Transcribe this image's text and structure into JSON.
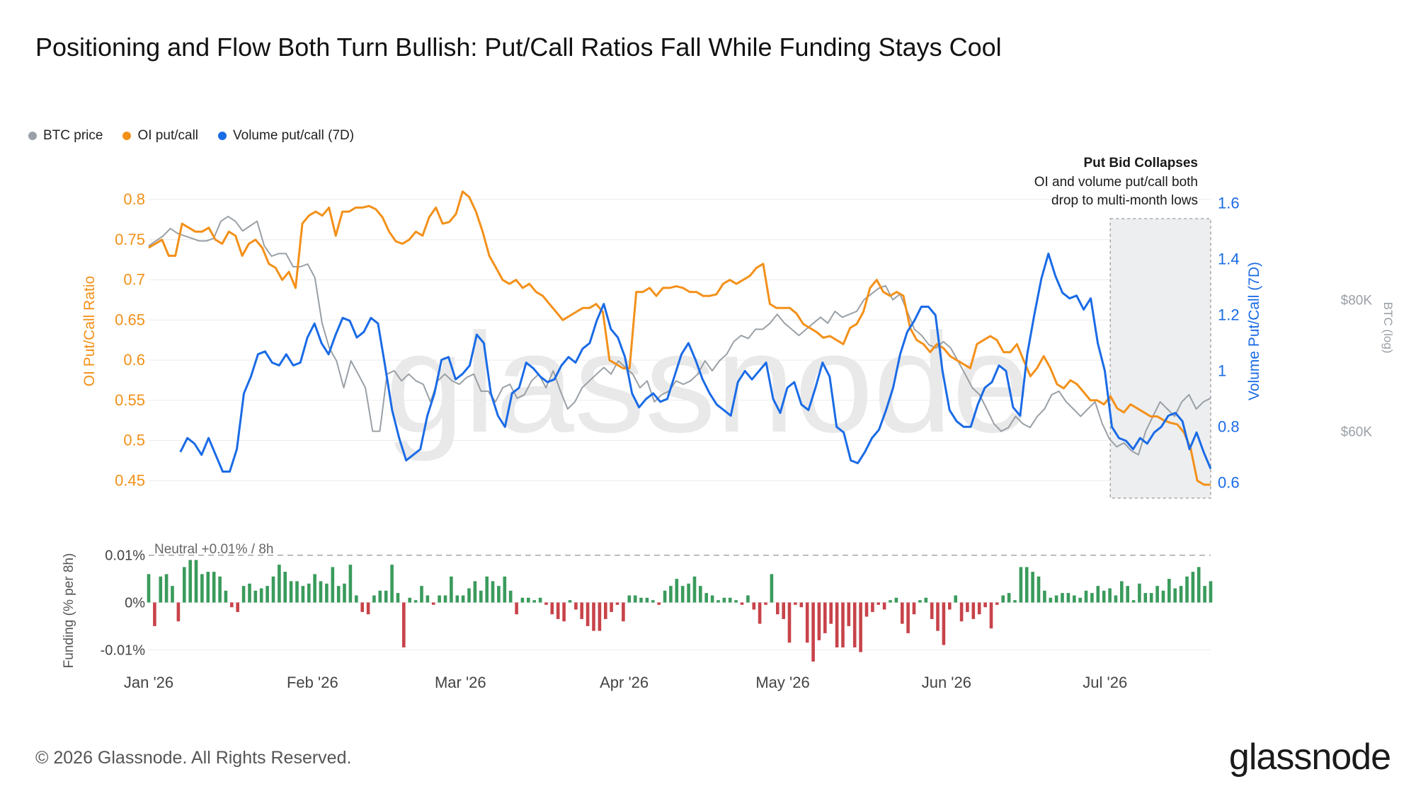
{
  "title": "Positioning and Flow Both Turn Bullish: Put/Call Ratios Fall While Funding Stays Cool",
  "legend": [
    {
      "label": "BTC price",
      "color": "#9aa0a6"
    },
    {
      "label": "OI put/call",
      "color": "#f39019"
    },
    {
      "label": "Volume put/call (7D)",
      "color": "#1a6be6"
    }
  ],
  "colors": {
    "btc": "#9aa0a6",
    "oi": "#f39019",
    "vol": "#1a6be6",
    "funding_pos": "#3a9b5c",
    "funding_neg": "#c8434a",
    "band": "#eceef0"
  },
  "watermark": "glassnode",
  "annotation": {
    "title": "Put Bid Collapses",
    "lines": [
      "OI and volume put/call both",
      "drop to multi-month lows"
    ]
  },
  "footer": {
    "copyright": "© 2026 Glassnode. All Rights Reserved.",
    "brand": "glassnode"
  },
  "chart_data": [
    {
      "type": "line",
      "x_axis": {
        "start": "2026-01-01",
        "end": "2026-07-21",
        "ticks": [
          "Jan '26",
          "Feb '26",
          "Mar '26",
          "Apr '26",
          "May '26",
          "Jun '26",
          "Jul '26"
        ]
      },
      "highlight_range": {
        "start": "2026-07-02",
        "end": "2026-07-21"
      },
      "axes": {
        "left": {
          "label": "OI Put/Call Ratio",
          "ylim": [
            0.43,
            0.83
          ],
          "ticks": [
            "0.45",
            "0.5",
            "0.55",
            "0.6",
            "0.65",
            "0.7",
            "0.75",
            "0.8"
          ],
          "color": "#f39019"
        },
        "right": {
          "label": "Volume Put/Call (7D)",
          "ylim": [
            0.55,
            1.7
          ],
          "ticks": [
            "0.6",
            "0.8",
            "1",
            "1.2",
            "1.4",
            "1.6"
          ],
          "color": "#1a6be6"
        },
        "far_right": {
          "label": "BTC (log)",
          "scale": "log",
          "ticks": [
            "$60K",
            "$80K"
          ],
          "color": "#9aa0a6"
        }
      },
      "series": [
        {
          "name": "OI put/call",
          "axis": "left",
          "start": "2026-01-01",
          "values": [
            0.74,
            0.745,
            0.75,
            0.73,
            0.73,
            0.77,
            0.765,
            0.76,
            0.76,
            0.765,
            0.75,
            0.745,
            0.76,
            0.755,
            0.73,
            0.745,
            0.75,
            0.74,
            0.72,
            0.715,
            0.7,
            0.71,
            0.69,
            0.77,
            0.78,
            0.785,
            0.78,
            0.79,
            0.755,
            0.785,
            0.785,
            0.79,
            0.79,
            0.792,
            0.788,
            0.778,
            0.76,
            0.748,
            0.745,
            0.75,
            0.76,
            0.755,
            0.778,
            0.79,
            0.77,
            0.772,
            0.782,
            0.81,
            0.803,
            0.785,
            0.76,
            0.73,
            0.715,
            0.7,
            0.695,
            0.7,
            0.69,
            0.695,
            0.685,
            0.68,
            0.67,
            0.66,
            0.65,
            0.655,
            0.66,
            0.665,
            0.665,
            0.67,
            0.66,
            0.6,
            0.595,
            0.59,
            0.59,
            0.685,
            0.685,
            0.69,
            0.68,
            0.69,
            0.69,
            0.692,
            0.69,
            0.685,
            0.685,
            0.68,
            0.68,
            0.682,
            0.695,
            0.7,
            0.695,
            0.7,
            0.705,
            0.715,
            0.72,
            0.67,
            0.665,
            0.665,
            0.665,
            0.658,
            0.645,
            0.64,
            0.635,
            0.628,
            0.63,
            0.625,
            0.62,
            0.64,
            0.645,
            0.66,
            0.69,
            0.7,
            0.685,
            0.68,
            0.685,
            0.68,
            0.64,
            0.625,
            0.62,
            0.61,
            0.62,
            0.615,
            0.605,
            0.6,
            0.595,
            0.59,
            0.62,
            0.625,
            0.63,
            0.625,
            0.61,
            0.61,
            0.62,
            0.6,
            0.58,
            0.59,
            0.605,
            0.59,
            0.57,
            0.565,
            0.575,
            0.57,
            0.56,
            0.55,
            0.55,
            0.545,
            0.555,
            0.54,
            0.535,
            0.545,
            0.54,
            0.535,
            0.53,
            0.53,
            0.525,
            0.522,
            0.52,
            0.51,
            0.49,
            0.45,
            0.445,
            0.445
          ]
        },
        {
          "name": "Volume put/call (7D)",
          "axis": "right",
          "start": "2026-01-07",
          "values": [
            0.71,
            0.76,
            0.74,
            0.7,
            0.76,
            0.7,
            0.64,
            0.64,
            0.72,
            0.92,
            0.98,
            1.06,
            1.07,
            1.03,
            1.02,
            1.06,
            1.02,
            1.03,
            1.12,
            1.17,
            1.1,
            1.06,
            1.13,
            1.19,
            1.18,
            1.12,
            1.14,
            1.19,
            1.17,
            1.02,
            0.86,
            0.76,
            0.68,
            0.7,
            0.72,
            0.84,
            0.92,
            1.04,
            1.05,
            0.97,
            0.99,
            1.02,
            1.13,
            1.1,
            0.92,
            0.84,
            0.8,
            0.92,
            0.94,
            1.03,
            1.01,
            0.98,
            0.96,
            0.97,
            1.02,
            1.05,
            1.03,
            1.08,
            1.1,
            1.18,
            1.24,
            1.15,
            1.12,
            1.05,
            0.92,
            0.87,
            0.9,
            0.92,
            0.89,
            0.9,
            0.98,
            1.06,
            1.1,
            1.04,
            0.97,
            0.92,
            0.88,
            0.86,
            0.84,
            0.96,
            1.0,
            0.97,
            1.0,
            1.03,
            0.9,
            0.85,
            0.94,
            0.96,
            0.88,
            0.86,
            0.94,
            1.03,
            0.98,
            0.8,
            0.78,
            0.68,
            0.67,
            0.71,
            0.76,
            0.79,
            0.86,
            0.94,
            1.06,
            1.14,
            1.18,
            1.23,
            1.23,
            1.2,
            1.0,
            0.86,
            0.82,
            0.8,
            0.8,
            0.88,
            0.94,
            0.96,
            1.02,
            1.0,
            0.87,
            0.84,
            1.06,
            1.2,
            1.33,
            1.42,
            1.34,
            1.28,
            1.26,
            1.27,
            1.22,
            1.26,
            1.1,
            1.0,
            0.8,
            0.76,
            0.75,
            0.72,
            0.76,
            0.74,
            0.78,
            0.8,
            0.84,
            0.85,
            0.82,
            0.72,
            0.78,
            0.71,
            0.65
          ]
        },
        {
          "name": "BTC price",
          "axis": "far_right",
          "start": "2026-01-01",
          "values": [
            90000,
            91000,
            92000,
            93500,
            92500,
            92000,
            91500,
            91000,
            91000,
            91500,
            95000,
            96000,
            95000,
            93000,
            94000,
            95000,
            90000,
            88000,
            88500,
            88500,
            86000,
            86000,
            86500,
            84000,
            76000,
            72000,
            70000,
            66000,
            70000,
            68000,
            66000,
            60000,
            60000,
            68000,
            68500,
            67000,
            68000,
            67000,
            66500,
            64000,
            67000,
            68000,
            67000,
            66500,
            67500,
            68000,
            65500,
            65500,
            64000,
            66000,
            66500,
            64500,
            65000,
            67000,
            68000,
            66000,
            68500,
            65500,
            63000,
            64000,
            66000,
            67000,
            68000,
            69000,
            68000,
            70000,
            69000,
            68000,
            66000,
            67000,
            64000,
            65000,
            65500,
            67000,
            66500,
            67000,
            68000,
            70000,
            68500,
            70000,
            71000,
            73000,
            74000,
            73500,
            75000,
            75000,
            76000,
            77500,
            76000,
            75000,
            74000,
            75000,
            76000,
            77000,
            76000,
            78000,
            77000,
            77500,
            78000,
            80000,
            81000,
            82000,
            82500,
            80000,
            81000,
            78000,
            75000,
            74000,
            72500,
            72000,
            73000,
            72000,
            70000,
            68000,
            66000,
            65000,
            63000,
            61000,
            60000,
            60500,
            62000,
            61000,
            60500,
            62000,
            63000,
            65000,
            65500,
            64000,
            63000,
            62000,
            63000,
            64000,
            61000,
            59000,
            58000,
            58500,
            57500,
            57000,
            60000,
            62000,
            64000,
            63000,
            62000,
            64000,
            65000,
            63000,
            64000,
            64500
          ]
        }
      ]
    },
    {
      "type": "bar",
      "ylabel": "Funding (% per 8h)",
      "ylim": [
        -0.0125,
        0.0125
      ],
      "y_ticks": [
        "0.01%",
        "0%",
        "-0.01%"
      ],
      "reference_line": {
        "value": 0.01,
        "label": "Neutral +0.01% / 8h"
      },
      "start": "2026-01-01",
      "values": [
        0.006,
        -0.005,
        0.0055,
        0.006,
        0.0035,
        -0.004,
        0.0075,
        0.009,
        0.009,
        0.006,
        0.0065,
        0.0065,
        0.0055,
        0.0025,
        -0.001,
        -0.002,
        0.0035,
        0.004,
        0.0025,
        0.003,
        0.0035,
        0.0055,
        0.008,
        0.0065,
        0.0045,
        0.0045,
        0.0035,
        0.004,
        0.006,
        0.0045,
        0.004,
        0.0075,
        0.0035,
        0.004,
        0.008,
        0.0015,
        -0.002,
        -0.0025,
        0.0015,
        0.0025,
        0.0025,
        0.008,
        0.002,
        -0.0095,
        0.001,
        0.0005,
        0.0035,
        0.0015,
        -0.0005,
        0.0015,
        0.0015,
        0.0055,
        0.0015,
        0.0015,
        0.003,
        0.0045,
        0.0025,
        0.0055,
        0.0045,
        0.0035,
        0.0055,
        0.0025,
        -0.0025,
        0.001,
        0.001,
        0.0005,
        0.001,
        -0.0005,
        -0.0025,
        -0.0035,
        -0.004,
        0.0005,
        -0.0015,
        -0.0035,
        -0.005,
        -0.006,
        -0.006,
        -0.0035,
        -0.002,
        -0.0005,
        -0.004,
        0.0015,
        0.0015,
        0.001,
        0.001,
        0.0005,
        -0.0005,
        0.0025,
        0.0035,
        0.005,
        0.0035,
        0.004,
        0.0055,
        0.0035,
        0.002,
        0.0015,
        0.0005,
        0.001,
        0.001,
        0.0005,
        -0.0005,
        0.0015,
        -0.0015,
        -0.0045,
        -0.0005,
        0.006,
        -0.0025,
        -0.0035,
        -0.0085,
        -0.0005,
        -0.001,
        -0.0085,
        -0.0125,
        -0.008,
        -0.0065,
        -0.0045,
        -0.0095,
        -0.0095,
        -0.005,
        -0.0095,
        -0.0105,
        -0.003,
        -0.002,
        -0.0005,
        -0.0015,
        0.0005,
        0.001,
        -0.0045,
        -0.0065,
        -0.0025,
        0.0005,
        0.001,
        -0.0035,
        -0.006,
        -0.009,
        -0.0015,
        0.0015,
        -0.004,
        -0.002,
        -0.0035,
        -0.0025,
        -0.001,
        -0.0055,
        -0.0005,
        0.0015,
        0.002,
        0.0005,
        0.0075,
        0.0075,
        0.0065,
        0.0055,
        0.0025,
        0.001,
        0.0015,
        0.002,
        0.002,
        0.0015,
        0.001,
        0.0025,
        0.002,
        0.0035,
        0.0025,
        0.003,
        0.0015,
        0.0045,
        0.0035,
        0.0005,
        0.004,
        0.002,
        0.002,
        0.0035,
        0.0025,
        0.005,
        0.003,
        0.0035,
        0.0055,
        0.0065,
        0.0075,
        0.0035,
        0.0045
      ]
    }
  ]
}
